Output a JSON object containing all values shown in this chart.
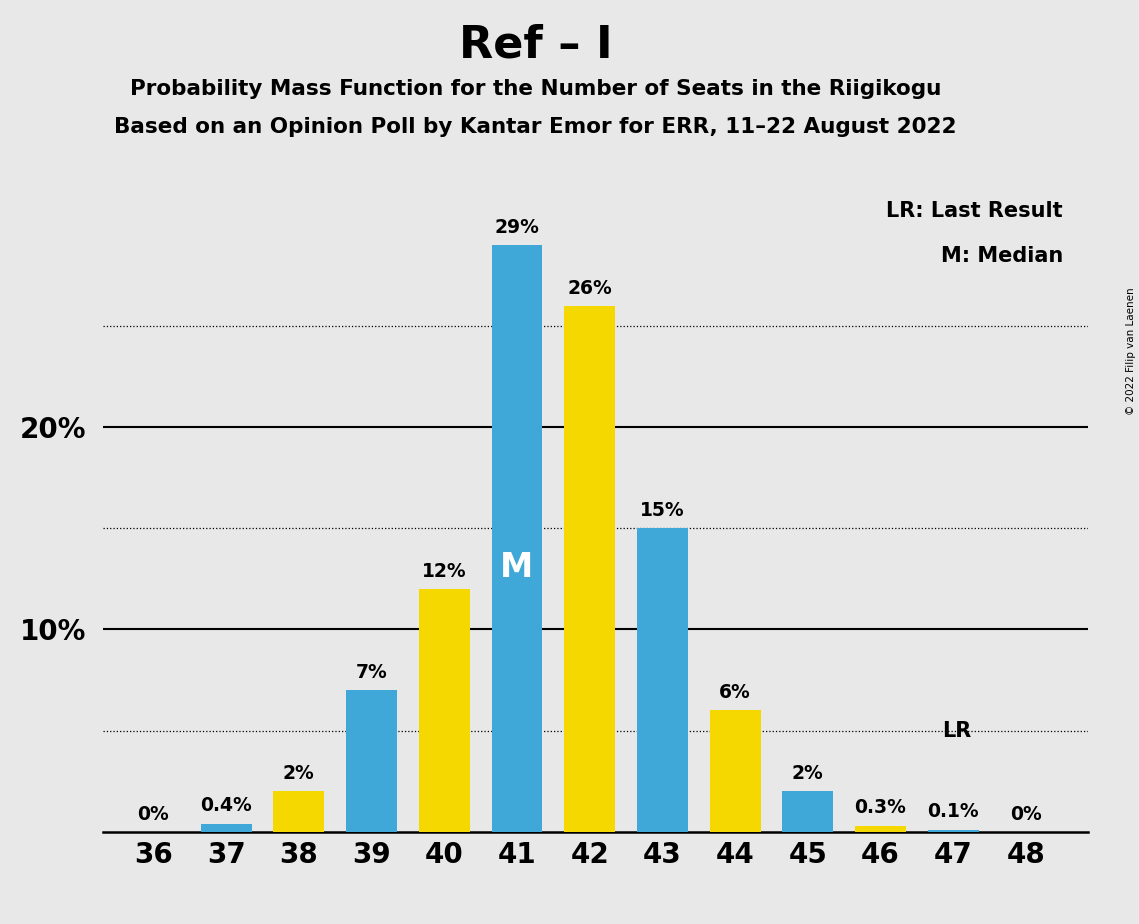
{
  "title": "Ref – I",
  "subtitle1": "Probability Mass Function for the Number of Seats in the Riigikogu",
  "subtitle2": "Based on an Opinion Poll by Kantar Emor for ERR, 11–22 August 2022",
  "copyright": "© 2022 Filip van Laenen",
  "seats": [
    36,
    37,
    38,
    39,
    40,
    41,
    42,
    43,
    44,
    45,
    46,
    47,
    48
  ],
  "values": [
    0.0,
    0.4,
    2.0,
    7.0,
    12.0,
    29.0,
    26.0,
    15.0,
    6.0,
    2.0,
    0.3,
    0.1,
    0.0
  ],
  "colors": [
    "#3fa8d8",
    "#3fa8d8",
    "#f5d800",
    "#3fa8d8",
    "#f5d800",
    "#3fa8d8",
    "#f5d800",
    "#3fa8d8",
    "#f5d800",
    "#3fa8d8",
    "#f5d800",
    "#3fa8d8",
    "#3fa8d8"
  ],
  "labels": [
    "0%",
    "0.4%",
    "2%",
    "7%",
    "12%",
    "29%",
    "26%",
    "15%",
    "6%",
    "2%",
    "0.3%",
    "0.1%",
    "0%"
  ],
  "blue_color": "#3fa8d8",
  "yellow_color": "#f5d800",
  "bg_color": "#e8e8e8",
  "median_seat": 41,
  "median_idx": 5,
  "lr_value": 5.0,
  "legend_lr": "LR: Last Result",
  "legend_m": "M: Median",
  "lr_label": "LR",
  "m_label": "M",
  "dotted_lines": [
    5,
    15,
    25
  ],
  "solid_lines": [
    10,
    20
  ],
  "ylim": [
    0,
    32
  ],
  "bar_width": 0.7
}
